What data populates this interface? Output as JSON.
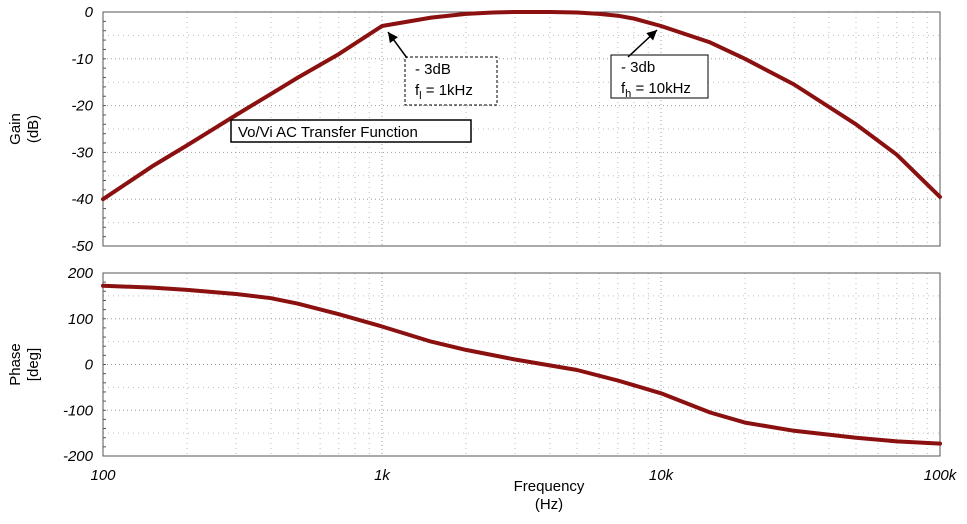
{
  "chart_data": [
    {
      "type": "line",
      "panel": "gain",
      "xscale": "log",
      "xlim": [
        100,
        100000
      ],
      "ylim": [
        -50,
        0
      ],
      "yticks": [
        0,
        -10,
        -20,
        -30,
        -40,
        -50
      ],
      "ytick_labels": [
        "0",
        "-10",
        "-20",
        "-30",
        "-40",
        "-50"
      ],
      "ylabel_lines": [
        "Gain",
        "(dB)"
      ],
      "grid": true,
      "line_color": "#8b1010",
      "series": [
        {
          "x": [
            100,
            150,
            200,
            300,
            400,
            500,
            700,
            1000,
            1500,
            2000,
            2500,
            3000,
            4000,
            5000,
            6000,
            7000,
            8000,
            10000,
            15000,
            20000,
            30000,
            50000,
            70000,
            100000
          ],
          "values": [
            -40,
            -33,
            -28.5,
            -22,
            -17.5,
            -14,
            -9,
            -3,
            -1.2,
            -0.4,
            -0.1,
            0,
            0,
            -0.1,
            -0.4,
            -0.8,
            -1.4,
            -3,
            -6.5,
            -10,
            -15.5,
            -24,
            -30.5,
            -39.5
          ]
        }
      ],
      "annotations": [
        {
          "line1": "- 3dB",
          "line2_prefix": "f",
          "line2_sub": "l",
          "line2_suffix": " = 1kHz",
          "x": 1000,
          "y": -3
        },
        {
          "line1": "- 3db",
          "line2_prefix": "f",
          "line2_sub": "h",
          "line2_suffix": " = 10kHz",
          "x": 10000,
          "y": -3
        }
      ],
      "label_box": "Vo/Vi AC Transfer Function"
    },
    {
      "type": "line",
      "panel": "phase",
      "xscale": "log",
      "xlim": [
        100,
        100000
      ],
      "ylim": [
        -200,
        200
      ],
      "yticks": [
        200,
        100,
        0,
        -100,
        -200
      ],
      "ytick_labels": [
        "200",
        "100",
        "0",
        "-100",
        "-200"
      ],
      "ylabel_lines": [
        "Phase",
        "[deg]"
      ],
      "xticks": [
        100,
        1000,
        10000,
        100000
      ],
      "xtick_labels": [
        "100",
        "1k",
        "10k",
        "100k"
      ],
      "xlabel_lines": [
        "Frequency",
        "(Hz)"
      ],
      "grid": true,
      "line_color": "#8b1010",
      "series": [
        {
          "x": [
            100,
            150,
            200,
            300,
            400,
            500,
            700,
            1000,
            1500,
            2000,
            3000,
            5000,
            7000,
            10000,
            15000,
            20000,
            30000,
            50000,
            70000,
            100000
          ],
          "values": [
            172,
            168,
            163,
            154,
            145,
            133,
            110,
            83,
            50,
            32,
            11,
            -12,
            -35,
            -63,
            -105,
            -127,
            -145,
            -160,
            -168,
            -173
          ]
        }
      ]
    }
  ]
}
